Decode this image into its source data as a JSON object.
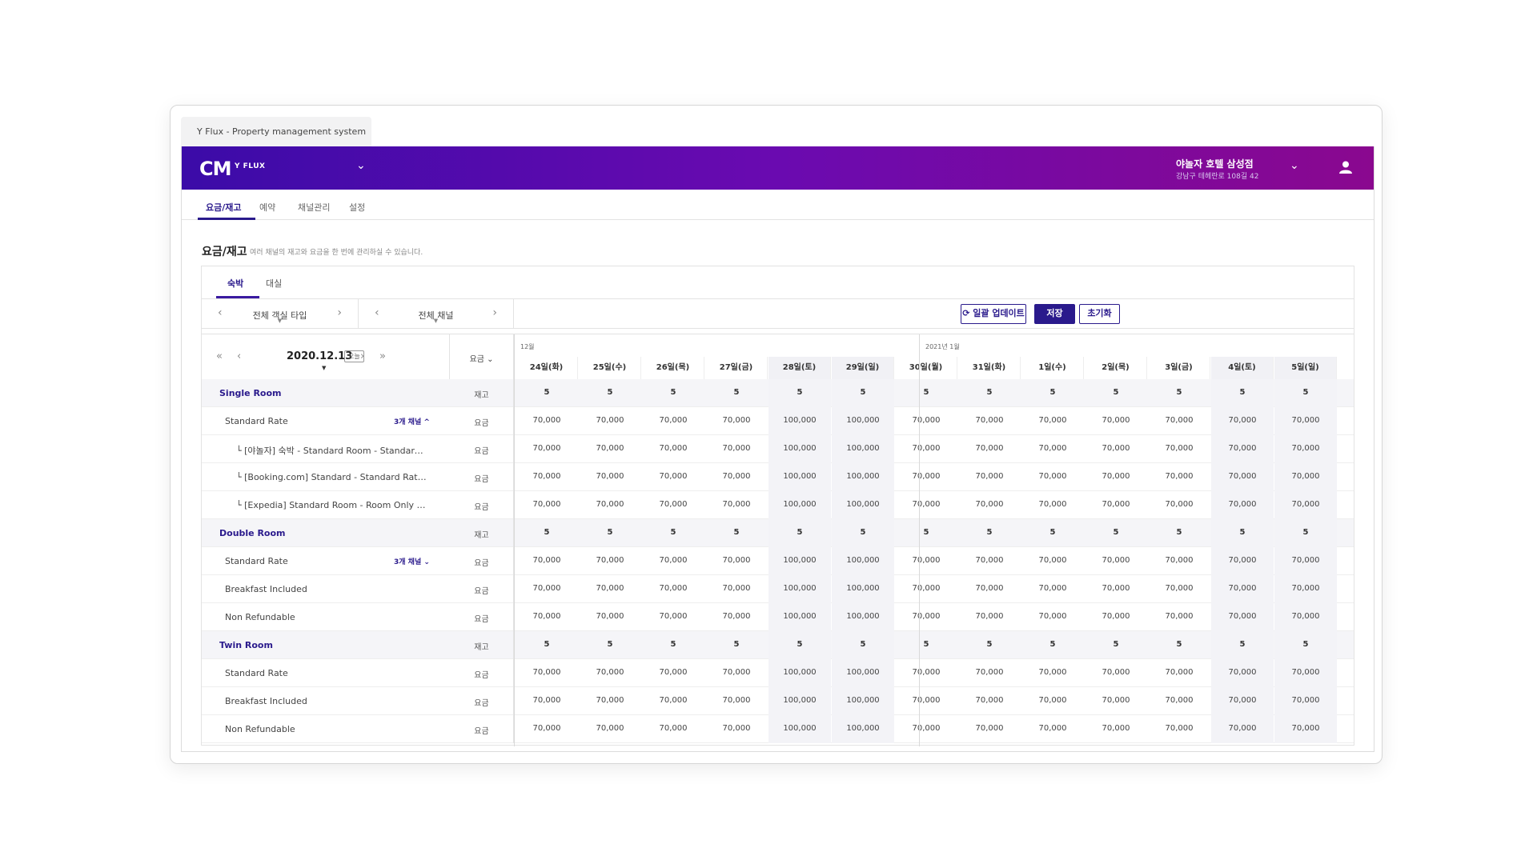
{
  "browser_tab": "Y Flux - Property management system",
  "brand": {
    "logo": "CM",
    "sub": "Y FLUX"
  },
  "hotel": {
    "name": "야놀자 호텔 삼성점",
    "address": "강남구 테헤란로 108길 42"
  },
  "nav": {
    "tabs": [
      "요금/재고",
      "예약",
      "채널관리",
      "설정"
    ]
  },
  "page": {
    "title": "요금/재고",
    "desc": "여러 채널의 재고와 요금을 한 번에 관리하실 수 있습니다."
  },
  "subtabs": [
    "숙박",
    "대실"
  ],
  "filters": {
    "room_type": "전체 객실 타입",
    "channel": "전체 채널"
  },
  "buttons": {
    "bulk": "일괄 업데이트",
    "save": "저장",
    "reset": "초기화"
  },
  "datenav": {
    "date": "2020.12.13",
    "today": "오늘"
  },
  "mode": "요금",
  "months": {
    "dec": "12월",
    "jan": "2021년 1월"
  },
  "days": [
    "24일(화)",
    "25일(수)",
    "26일(목)",
    "27일(금)",
    "28일(토)",
    "29일(일)",
    "30일(월)",
    "31일(화)",
    "1일(수)",
    "2일(목)",
    "3일(금)",
    "4일(토)",
    "5일(일)"
  ],
  "weekend_flags": [
    false,
    false,
    false,
    false,
    true,
    true,
    false,
    false,
    false,
    false,
    false,
    true,
    true
  ],
  "labels": {
    "stock": "재고",
    "rate": "요금",
    "channels_badge": "3개 채널"
  },
  "rows": [
    {
      "type": "group",
      "name": "Single Room",
      "kind": "재고",
      "values": [
        "5",
        "5",
        "5",
        "5",
        "5",
        "5",
        "5",
        "5",
        "5",
        "5",
        "5",
        "5",
        "5"
      ]
    },
    {
      "type": "rate",
      "name": "Standard Rate",
      "badge": "3개 채널 ^",
      "kind": "요금",
      "values": [
        "70,000",
        "70,000",
        "70,000",
        "70,000",
        "100,000",
        "100,000",
        "70,000",
        "70,000",
        "70,000",
        "70,000",
        "70,000",
        "70,000",
        "70,000"
      ]
    },
    {
      "type": "chan",
      "name": "└ [야놀자] 숙박 - Standard Room - Standard Rat...",
      "kind": "요금",
      "values": [
        "70,000",
        "70,000",
        "70,000",
        "70,000",
        "100,000",
        "100,000",
        "70,000",
        "70,000",
        "70,000",
        "70,000",
        "70,000",
        "70,000",
        "70,000"
      ]
    },
    {
      "type": "chan",
      "name": "└ [Booking.com] Standard - Standard Rate (G...",
      "kind": "요금",
      "values": [
        "70,000",
        "70,000",
        "70,000",
        "70,000",
        "100,000",
        "100,000",
        "70,000",
        "70,000",
        "70,000",
        "70,000",
        "70,000",
        "70,000",
        "70,000"
      ]
    },
    {
      "type": "chan",
      "name": "└ [Expedia] Standard Room - Room Only - Sta...",
      "kind": "요금",
      "values": [
        "70,000",
        "70,000",
        "70,000",
        "70,000",
        "100,000",
        "100,000",
        "70,000",
        "70,000",
        "70,000",
        "70,000",
        "70,000",
        "70,000",
        "70,000"
      ]
    },
    {
      "type": "group",
      "name": "Double Room",
      "kind": "재고",
      "values": [
        "5",
        "5",
        "5",
        "5",
        "5",
        "5",
        "5",
        "5",
        "5",
        "5",
        "5",
        "5",
        "5"
      ]
    },
    {
      "type": "rate",
      "name": "Standard Rate",
      "badge": "3개 채널 ⌄",
      "kind": "요금",
      "values": [
        "70,000",
        "70,000",
        "70,000",
        "70,000",
        "100,000",
        "100,000",
        "70,000",
        "70,000",
        "70,000",
        "70,000",
        "70,000",
        "70,000",
        "70,000"
      ]
    },
    {
      "type": "rate",
      "name": "Breakfast Included",
      "kind": "요금",
      "values": [
        "70,000",
        "70,000",
        "70,000",
        "70,000",
        "100,000",
        "100,000",
        "70,000",
        "70,000",
        "70,000",
        "70,000",
        "70,000",
        "70,000",
        "70,000"
      ]
    },
    {
      "type": "rate",
      "name": "Non Refundable",
      "kind": "요금",
      "values": [
        "70,000",
        "70,000",
        "70,000",
        "70,000",
        "100,000",
        "100,000",
        "70,000",
        "70,000",
        "70,000",
        "70,000",
        "70,000",
        "70,000",
        "70,000"
      ]
    },
    {
      "type": "group",
      "name": "Twin Room",
      "kind": "재고",
      "values": [
        "5",
        "5",
        "5",
        "5",
        "5",
        "5",
        "5",
        "5",
        "5",
        "5",
        "5",
        "5",
        "5"
      ]
    },
    {
      "type": "rate",
      "name": "Standard Rate",
      "kind": "요금",
      "values": [
        "70,000",
        "70,000",
        "70,000",
        "70,000",
        "100,000",
        "100,000",
        "70,000",
        "70,000",
        "70,000",
        "70,000",
        "70,000",
        "70,000",
        "70,000"
      ]
    },
    {
      "type": "rate",
      "name": "Breakfast Included",
      "kind": "요금",
      "values": [
        "70,000",
        "70,000",
        "70,000",
        "70,000",
        "100,000",
        "100,000",
        "70,000",
        "70,000",
        "70,000",
        "70,000",
        "70,000",
        "70,000",
        "70,000"
      ]
    },
    {
      "type": "rate",
      "name": "Non Refundable",
      "kind": "요금",
      "values": [
        "70,000",
        "70,000",
        "70,000",
        "70,000",
        "100,000",
        "100,000",
        "70,000",
        "70,000",
        "70,000",
        "70,000",
        "70,000",
        "70,000",
        "70,000"
      ]
    }
  ],
  "colors": {
    "brand": "#2a1a8c",
    "gradient_start": "#3b0ba8",
    "gradient_end": "#8a088f"
  }
}
